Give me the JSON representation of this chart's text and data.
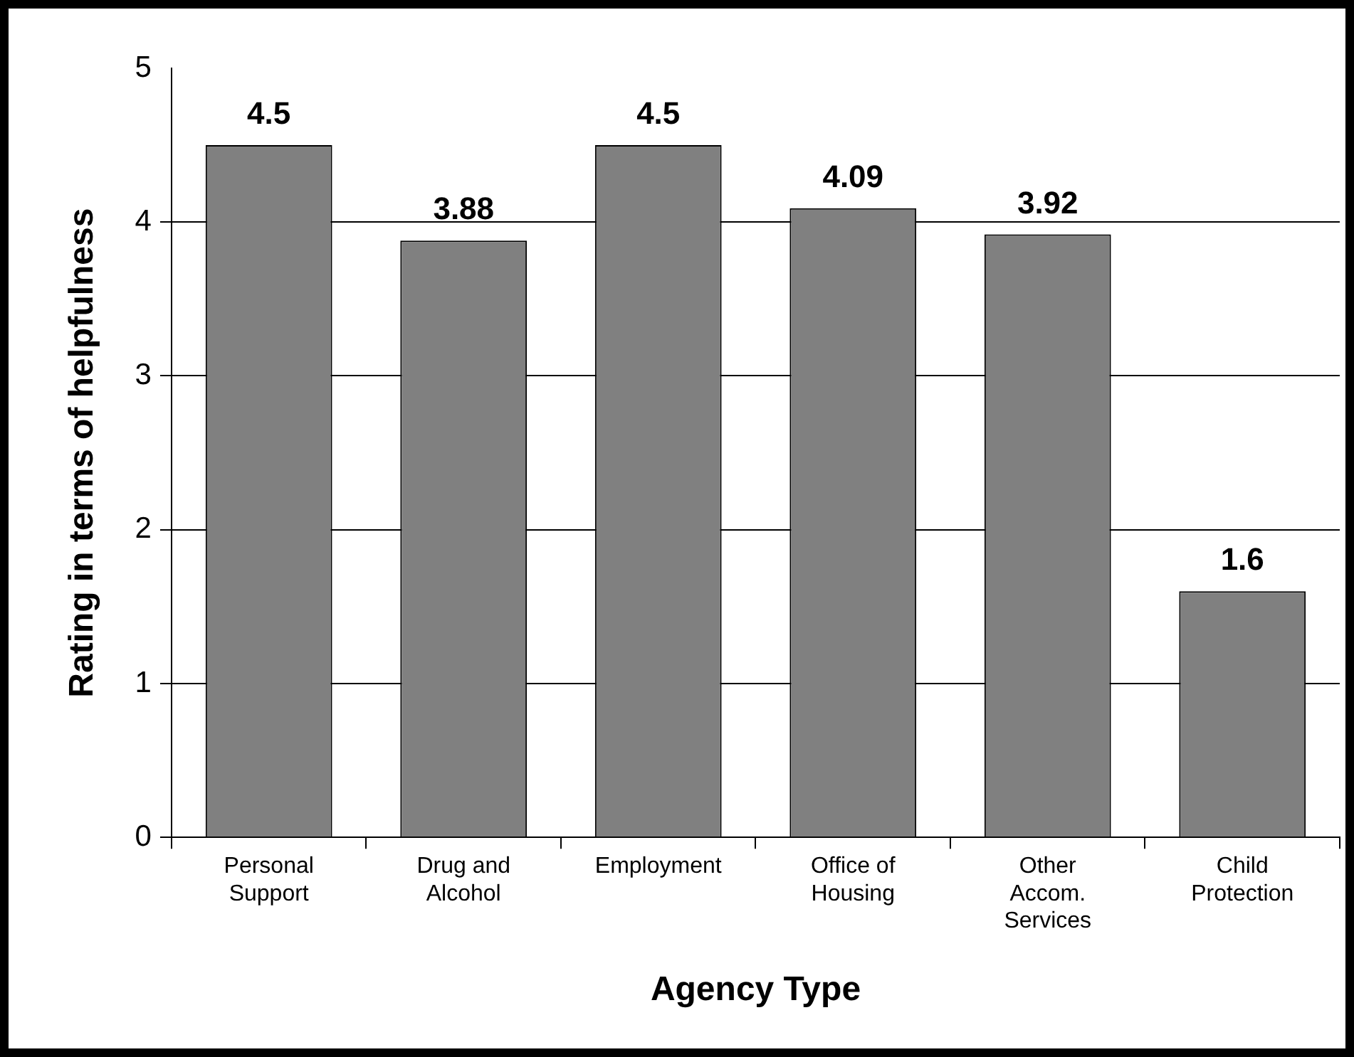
{
  "chart_data": {
    "type": "bar",
    "xlabel": "Agency Type",
    "ylabel": "Rating in terms of helpfulness",
    "categories": [
      "Personal Support",
      "Drug and Alcohol",
      "Employment",
      "Office of Housing",
      "Other Accom. Services",
      "Child Protection"
    ],
    "values": [
      4.5,
      3.88,
      4.5,
      4.09,
      3.92,
      1.6
    ],
    "color": "#808080",
    "ylim": [
      0,
      5
    ],
    "yticks": [
      0,
      1,
      2,
      3,
      4,
      5
    ],
    "grid": "y",
    "legend": false,
    "data_labels": true
  }
}
